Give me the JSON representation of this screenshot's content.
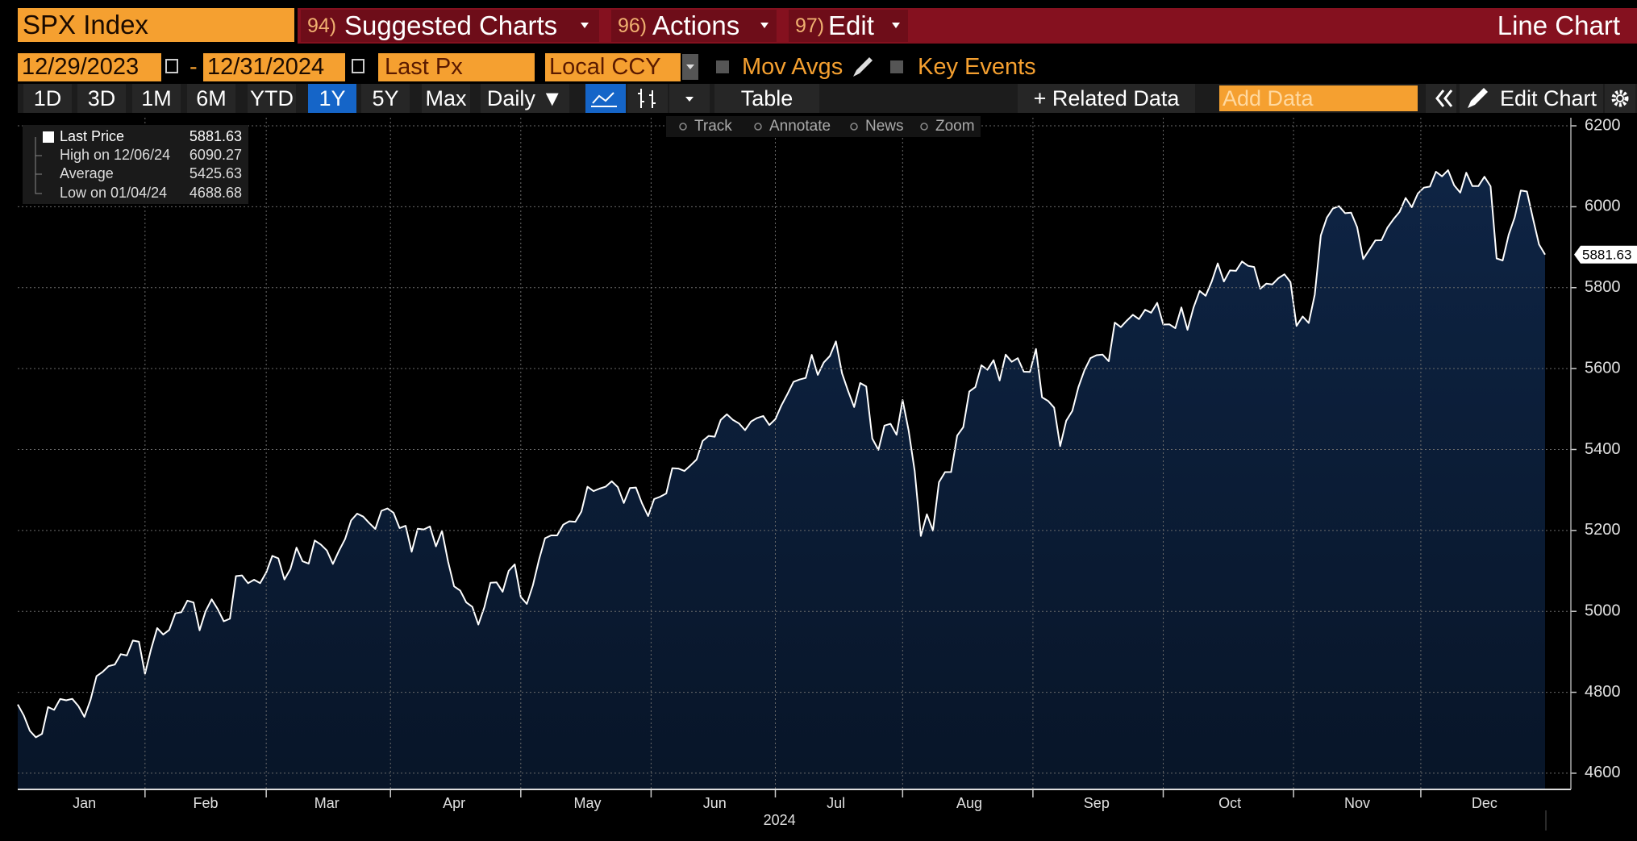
{
  "header": {
    "ticker": "SPX Index",
    "menus": [
      {
        "number": "94)",
        "label": "Suggested Charts"
      },
      {
        "number": "96)",
        "label": "Actions"
      },
      {
        "number": "97)",
        "label": "Edit"
      }
    ],
    "chart_type_label": "Line Chart"
  },
  "controls": {
    "start_date": "12/29/2023",
    "separator": "-",
    "end_date": "12/31/2024",
    "field": "Last Px",
    "currency": "Local CCY",
    "checkboxes": [
      "Mov Avgs",
      "Key Events"
    ],
    "periods": [
      "1D",
      "3D",
      "1M",
      "6M",
      "YTD",
      "1Y",
      "5Y",
      "Max"
    ],
    "active_period": 5,
    "frequency": "Daily ▼",
    "table": "Table",
    "related_data": "+ Related Data",
    "add_data": "Add Data",
    "edit_chart": "Edit Chart"
  },
  "toolbar": [
    "Track",
    "Annotate",
    "News",
    "Zoom"
  ],
  "chart_data": {
    "type": "line",
    "x_label": "2024",
    "categories": [
      null,
      null,
      null,
      null,
      null,
      null,
      null,
      null,
      null,
      null,
      null,
      "Jan",
      null,
      null,
      null,
      null,
      null,
      null,
      null,
      null,
      null,
      null,
      null,
      null,
      null,
      null,
      null,
      null,
      null,
      null,
      null,
      "Feb",
      null,
      null,
      null,
      null,
      null,
      null,
      null,
      null,
      null,
      null,
      null,
      null,
      null,
      null,
      null,
      null,
      null,
      null,
      null,
      "Mar",
      null,
      null,
      null,
      null,
      null,
      null,
      null,
      null,
      null,
      null,
      null,
      null,
      null,
      null,
      null,
      null,
      null,
      null,
      null,
      null,
      "Apr",
      null,
      null,
      null,
      null,
      null,
      null,
      null,
      null,
      null,
      null,
      null,
      null,
      null,
      null,
      null,
      null,
      null,
      null,
      null,
      null,
      null,
      "May",
      null,
      null,
      null,
      null,
      null,
      null,
      null,
      null,
      null,
      null,
      null,
      null,
      null,
      null,
      null,
      null,
      null,
      null,
      null,
      null,
      "Jun",
      null,
      null,
      null,
      null,
      null,
      null,
      null,
      null,
      null,
      null,
      null,
      null,
      null,
      null,
      null,
      null,
      null,
      null,
      null,
      "Jul",
      null,
      null,
      null,
      null,
      null,
      null,
      null,
      null,
      null,
      null,
      null,
      null,
      null,
      null,
      null,
      null,
      null,
      null,
      null,
      null,
      null,
      "Aug",
      null,
      null,
      null,
      null,
      null,
      null,
      null,
      null,
      null,
      null,
      null,
      null,
      null,
      null,
      null,
      null,
      null,
      null,
      null,
      null,
      "Sep",
      null,
      null,
      null,
      null,
      null,
      null,
      null,
      null,
      null,
      null,
      null,
      null,
      null,
      null,
      null,
      null,
      null,
      null,
      null,
      null,
      null,
      "Oct",
      null,
      null,
      null,
      null,
      null,
      null,
      null,
      null,
      null,
      null,
      null,
      null,
      null,
      null,
      null,
      null,
      null,
      null,
      null,
      null,
      "Nov",
      null,
      null,
      null,
      null,
      null,
      null,
      null,
      null,
      null,
      null,
      null,
      null,
      null,
      null,
      null,
      null,
      null,
      null,
      null,
      null,
      "Dec",
      null,
      null,
      null,
      null,
      null,
      null,
      null,
      null,
      null,
      null
    ],
    "series": [
      {
        "name": "Last Price",
        "color": "#ffffff",
        "fill": "#0b1c36",
        "values": [
          4769.83,
          4742.83,
          4704.81,
          4688.68,
          4697.24,
          4763.54,
          4756.5,
          4783.45,
          4780.24,
          4783.83,
          4765.98,
          4739.21,
          4780.94,
          4839.81,
          4850.43,
          4864.6,
          4868.55,
          4894.16,
          4890.97,
          4927.93,
          4924.97,
          4845.65,
          4906.19,
          4958.61,
          4942.81,
          4954.23,
          4995.06,
          4997.91,
          5026.61,
          5021.84,
          4953.17,
          5000.62,
          5029.73,
          5005.57,
          4975.51,
          4981.8,
          5087.03,
          5088.8,
          5069.53,
          5078.18,
          5069.76,
          5096.27,
          5137.08,
          5130.95,
          5078.65,
          5104.76,
          5157.36,
          5123.69,
          5117.94,
          5175.27,
          5165.31,
          5150.48,
          5117.09,
          5149.42,
          5178.51,
          5224.62,
          5241.53,
          5234.18,
          5218.19,
          5203.58,
          5248.49,
          5254.35,
          5243.77,
          5205.81,
          5211.49,
          5147.21,
          5204.34,
          5202.39,
          5209.91,
          5160.64,
          5199.06,
          5123.41,
          5061.82,
          5051.41,
          5022.21,
          5011.12,
          4967.23,
          5010.6,
          5070.55,
          5071.63,
          5048.42,
          5099.96,
          5116.17,
          5035.69,
          5018.39,
          5064.2,
          5127.79,
          5180.74,
          5187.7,
          5187.67,
          5214.08,
          5222.68,
          5221.42,
          5246.68,
          5308.15,
          5297.1,
          5303.27,
          5308.13,
          5321.41,
          5307.01,
          5267.84,
          5304.72,
          5306.04,
          5266.95,
          5235.48,
          5277.51,
          5283.4,
          5291.34,
          5354.03,
          5352.96,
          5346.99,
          5360.79,
          5375.32,
          5421.03,
          5433.74,
          5431.6,
          5473.23,
          5487.03,
          5473.17,
          5464.62,
          5447.87,
          5469.3,
          5477.9,
          5482.87,
          5460.48,
          5475.09,
          5509.01,
          5537.02,
          5567.19,
          5572.85,
          5576.98,
          5633.91,
          5584.54,
          5615.35,
          5631.22,
          5667.2,
          5588.27,
          5544.59,
          5505.0,
          5564.41,
          5555.74,
          5427.13,
          5399.22,
          5459.1,
          5463.54,
          5436.44,
          5522.3,
          5446.68,
          5346.56,
          5186.33,
          5240.03,
          5199.5,
          5319.31,
          5344.16,
          5344.39,
          5434.43,
          5455.21,
          5543.22,
          5554.25,
          5608.25,
          5597.12,
          5620.85,
          5570.64,
          5634.61,
          5616.84,
          5625.8,
          5592.18,
          5591.96,
          5648.4,
          5528.93,
          5520.07,
          5503.41,
          5408.42,
          5471.05,
          5495.52,
          5554.13,
          5595.76,
          5626.02,
          5633.09,
          5634.58,
          5618.26,
          5713.64,
          5702.55,
          5718.57,
          5732.93,
          5722.26,
          5745.37,
          5738.17,
          5762.48,
          5708.75,
          5709.54,
          5699.94,
          5751.07,
          5695.94,
          5751.13,
          5792.04,
          5780.05,
          5815.03,
          5859.85,
          5815.26,
          5842.47,
          5841.47,
          5864.67,
          5853.98,
          5851.2,
          5797.42,
          5809.86,
          5808.12,
          5823.52,
          5832.92,
          5813.67,
          5705.45,
          5728.8,
          5712.69,
          5782.76,
          5929.04,
          5973.1,
          5995.54,
          6001.35,
          5983.99,
          5985.38,
          5949.17,
          5870.62,
          5893.62,
          5916.98,
          5917.11,
          5948.71,
          5969.34,
          5987.37,
          6021.63,
          5998.74,
          6032.38,
          6047.15,
          6049.88,
          6086.49,
          6075.11,
          6090.27,
          6052.85,
          6034.91,
          6084.19,
          6051.25,
          6051.09,
          6074.08,
          6050.61,
          5872.16,
          5867.08,
          5930.85,
          5974.07,
          6040.04,
          6037.59,
          5970.84,
          5906.94,
          5881.63
        ]
      }
    ],
    "stats": [
      {
        "label": "High on 12/06/24",
        "value": 6090.27
      },
      {
        "label": "Average",
        "value": 5425.63
      },
      {
        "label": "Low on 01/04/24",
        "value": 4688.68
      }
    ],
    "ylim": [
      4560,
      6220
    ],
    "yticks": [
      4600,
      4800,
      5000,
      5200,
      5400,
      5600,
      5800,
      6000,
      6200
    ],
    "grid": true
  }
}
